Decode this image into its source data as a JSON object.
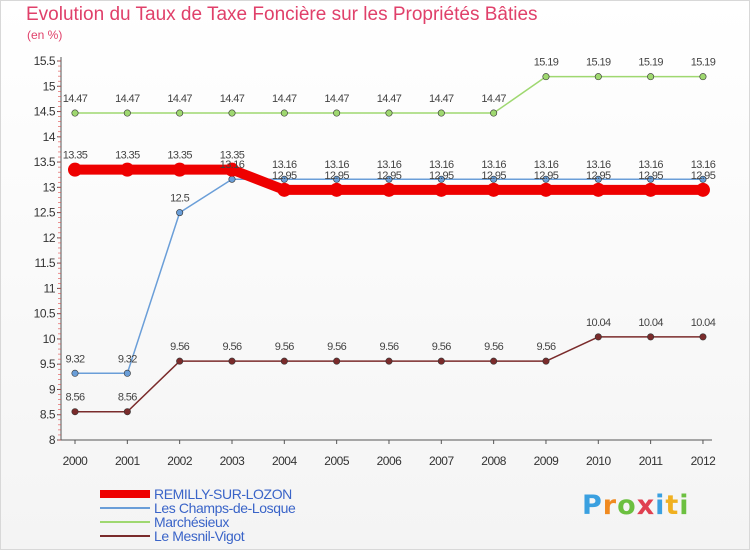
{
  "chart_data": {
    "type": "line",
    "title": "Evolution du Taux de Taxe Foncière sur les Propriétés Bâties",
    "ylabel": "(en %)",
    "xlabel": "",
    "x": [
      "2000",
      "2001",
      "2002",
      "2003",
      "2004",
      "2005",
      "2006",
      "2007",
      "2008",
      "2009",
      "2010",
      "2011",
      "2012"
    ],
    "ylim": [
      8,
      15.5
    ],
    "yticks": [
      "8",
      "8.5",
      "9",
      "9.5",
      "10",
      "10.5",
      "11",
      "11.5",
      "12",
      "12.5",
      "13",
      "13.5",
      "14",
      "14.5",
      "15",
      "15.5"
    ],
    "grid": false,
    "legend_position": "bottom-left",
    "series": [
      {
        "name": "REMILLY-SUR-LOZON",
        "color": "#ee0000",
        "values": [
          13.35,
          13.35,
          13.35,
          13.35,
          12.95,
          12.95,
          12.95,
          12.95,
          12.95,
          12.95,
          12.95,
          12.95,
          12.95
        ],
        "labels": [
          "13.35",
          "13.35",
          "13.35",
          "13.35",
          "12.95",
          "12.95",
          "12.95",
          "12.95",
          "12.95",
          "12.95",
          "12.95",
          "12.95",
          "12.95"
        ]
      },
      {
        "name": "Les Champs-de-Losque",
        "color": "#6a9ed8",
        "values": [
          9.32,
          9.32,
          12.5,
          13.16,
          13.16,
          13.16,
          13.16,
          13.16,
          13.16,
          13.16,
          13.16,
          13.16,
          13.16
        ],
        "labels": [
          "9.32",
          "9.32",
          "12.5",
          "13.16",
          "13.16",
          "13.16",
          "13.16",
          "13.16",
          "13.16",
          "13.16",
          "13.16",
          "13.16",
          "13.16"
        ]
      },
      {
        "name": "Marchésieux",
        "color": "#9fd870",
        "values": [
          14.47,
          14.47,
          14.47,
          14.47,
          14.47,
          14.47,
          14.47,
          14.47,
          14.47,
          15.19,
          15.19,
          15.19,
          15.19
        ],
        "labels": [
          "14.47",
          "14.47",
          "14.47",
          "14.47",
          "14.47",
          "14.47",
          "14.47",
          "14.47",
          "14.47",
          "15.19",
          "15.19",
          "15.19",
          "15.19"
        ]
      },
      {
        "name": "Le Mesnil-Vigot",
        "color": "#7a2b2b",
        "values": [
          8.56,
          8.56,
          9.56,
          9.56,
          9.56,
          9.56,
          9.56,
          9.56,
          9.56,
          9.56,
          10.04,
          10.04,
          10.04
        ],
        "labels": [
          "8.56",
          "8.56",
          "9.56",
          "9.56",
          "9.56",
          "9.56",
          "9.56",
          "9.56",
          "9.56",
          "9.56",
          "10.04",
          "10.04",
          "10.04"
        ]
      }
    ]
  },
  "logo": {
    "text": "Proxiti"
  }
}
